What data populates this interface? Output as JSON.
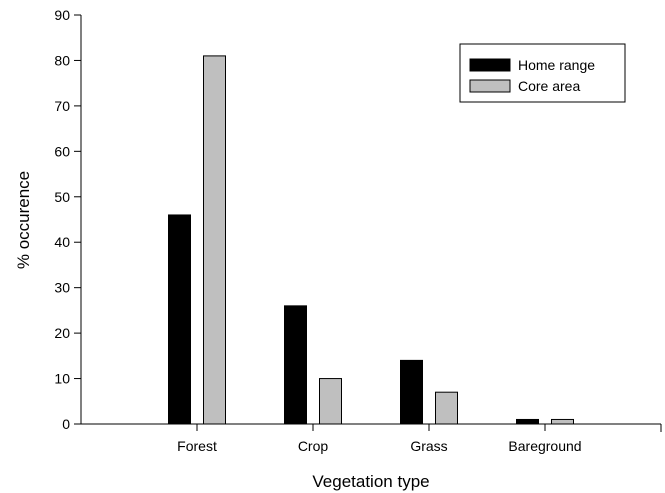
{
  "chart_data": {
    "type": "bar",
    "title": "",
    "xlabel": "Vegetation type",
    "ylabel": "% occurence",
    "ylim": [
      0,
      90
    ],
    "yticks": [
      0,
      10,
      20,
      30,
      40,
      50,
      60,
      70,
      80,
      90
    ],
    "categories": [
      "Forest",
      "Crop",
      "Grass",
      "Bareground"
    ],
    "series": [
      {
        "name": "Home range",
        "values": [
          46,
          26,
          14,
          1
        ],
        "color": "#000000"
      },
      {
        "name": "Core area",
        "values": [
          81,
          10,
          7,
          1
        ],
        "color": "#bfbfbf"
      }
    ],
    "legend": "top-right",
    "grid": false
  }
}
